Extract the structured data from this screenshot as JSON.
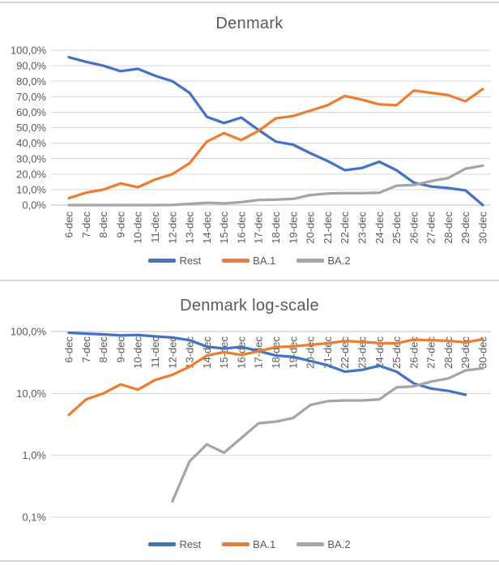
{
  "window": {
    "background": "#ffffff",
    "divider_color": "#d5d5d5"
  },
  "colors": {
    "grid": "#d9d9d9",
    "axis": "#bfbfbf",
    "text": "#595959",
    "title": "#595959"
  },
  "legend": {
    "items": [
      {
        "label": "Rest",
        "color": "#4472C4"
      },
      {
        "label": "BA.1",
        "color": "#ED7D31"
      },
      {
        "label": "BA.2",
        "color": "#A5A5A5"
      }
    ]
  },
  "chart_data": [
    {
      "type": "line",
      "title": "Denmark",
      "scale": "linear",
      "ylim": [
        0,
        100
      ],
      "y_ticks": [
        "100,0%",
        "90,0%",
        "80,0%",
        "70,0%",
        "60,0%",
        "50,0%",
        "40,0%",
        "30,0%",
        "20,0%",
        "10,0%",
        "0,0%"
      ],
      "grid": true,
      "legend_position": "bottom",
      "x_labels_position": "bottom",
      "x_labels_rotation": -90,
      "categories": [
        "6-dec",
        "7-dec",
        "8-dec",
        "9-dec",
        "10-dec",
        "11-dec",
        "12-dec",
        "13-dec",
        "14-dec",
        "15-dec",
        "16-dec",
        "17-dec",
        "18-dec",
        "19-dec",
        "20-dec",
        "21-dec",
        "22-dec",
        "23-dec",
        "24-dec",
        "25-dec",
        "26-dec",
        "27-dec",
        "28-dec",
        "29-dec",
        "30-dec"
      ],
      "series": [
        {
          "name": "Rest",
          "color": "#4472C4",
          "values": [
            95.5,
            92.5,
            90,
            86.5,
            88,
            83.5,
            80,
            72.5,
            57,
            53,
            56.5,
            48.5,
            41,
            39,
            33.5,
            28.5,
            22.5,
            24,
            28,
            22.5,
            14.5,
            12,
            11,
            9.5,
            0
          ]
        },
        {
          "name": "BA.1",
          "color": "#ED7D31",
          "values": [
            4.5,
            8,
            10,
            14,
            11.5,
            16.5,
            20,
            27,
            41,
            46.5,
            42,
            48,
            56,
            57.5,
            61,
            64.5,
            70.5,
            68,
            65,
            64.5,
            74,
            72.5,
            71,
            67,
            75
          ]
        },
        {
          "name": "BA.2",
          "color": "#A5A5A5",
          "values": [
            0,
            0,
            0,
            0,
            0,
            0,
            0.18,
            0.8,
            1.5,
            1.1,
            1.9,
            3.3,
            3.5,
            4,
            6.5,
            7.5,
            7.7,
            7.7,
            8,
            12.5,
            13,
            15.5,
            17.5,
            23.5,
            25.5
          ]
        }
      ]
    },
    {
      "type": "line",
      "title": "Denmark log-scale",
      "scale": "log",
      "ylim": [
        0.1,
        100
      ],
      "y_ticks": [
        "100,0%",
        "10,0%",
        "1,0%",
        "0,1%"
      ],
      "grid": true,
      "legend_position": "bottom",
      "x_labels_position": "top",
      "x_labels_rotation": -90,
      "categories": [
        "6-dec",
        "7-dec",
        "8-dec",
        "9-dec",
        "10-dec",
        "11-dec",
        "12-dec",
        "13-dec",
        "14-dec",
        "15-dec",
        "16-dec",
        "17-dec",
        "18-dec",
        "19-dec",
        "20-dec",
        "21-dec",
        "22-dec",
        "23-dec",
        "24-dec",
        "25-dec",
        "26-dec",
        "27-dec",
        "28-dec",
        "29-dec",
        "30-dec"
      ],
      "series": [
        {
          "name": "Rest",
          "color": "#4472C4",
          "values": [
            95.5,
            92.5,
            90,
            86.5,
            88,
            83.5,
            80,
            72.5,
            57,
            53,
            56.5,
            48.5,
            41,
            39,
            33.5,
            28.5,
            22.5,
            24,
            28,
            22.5,
            14.5,
            12,
            11,
            9.5,
            0
          ]
        },
        {
          "name": "BA.1",
          "color": "#ED7D31",
          "values": [
            4.5,
            8,
            10,
            14,
            11.5,
            16.5,
            20,
            27,
            41,
            46.5,
            42,
            48,
            56,
            57.5,
            61,
            64.5,
            70.5,
            68,
            65,
            64.5,
            74,
            72.5,
            71,
            67,
            75
          ]
        },
        {
          "name": "BA.2",
          "color": "#A5A5A5",
          "values": [
            0,
            0,
            0,
            0,
            0,
            0,
            0.18,
            0.8,
            1.5,
            1.1,
            1.9,
            3.3,
            3.5,
            4,
            6.5,
            7.5,
            7.7,
            7.7,
            8,
            12.5,
            13,
            15.5,
            17.5,
            23.5,
            25.5
          ]
        }
      ]
    }
  ]
}
